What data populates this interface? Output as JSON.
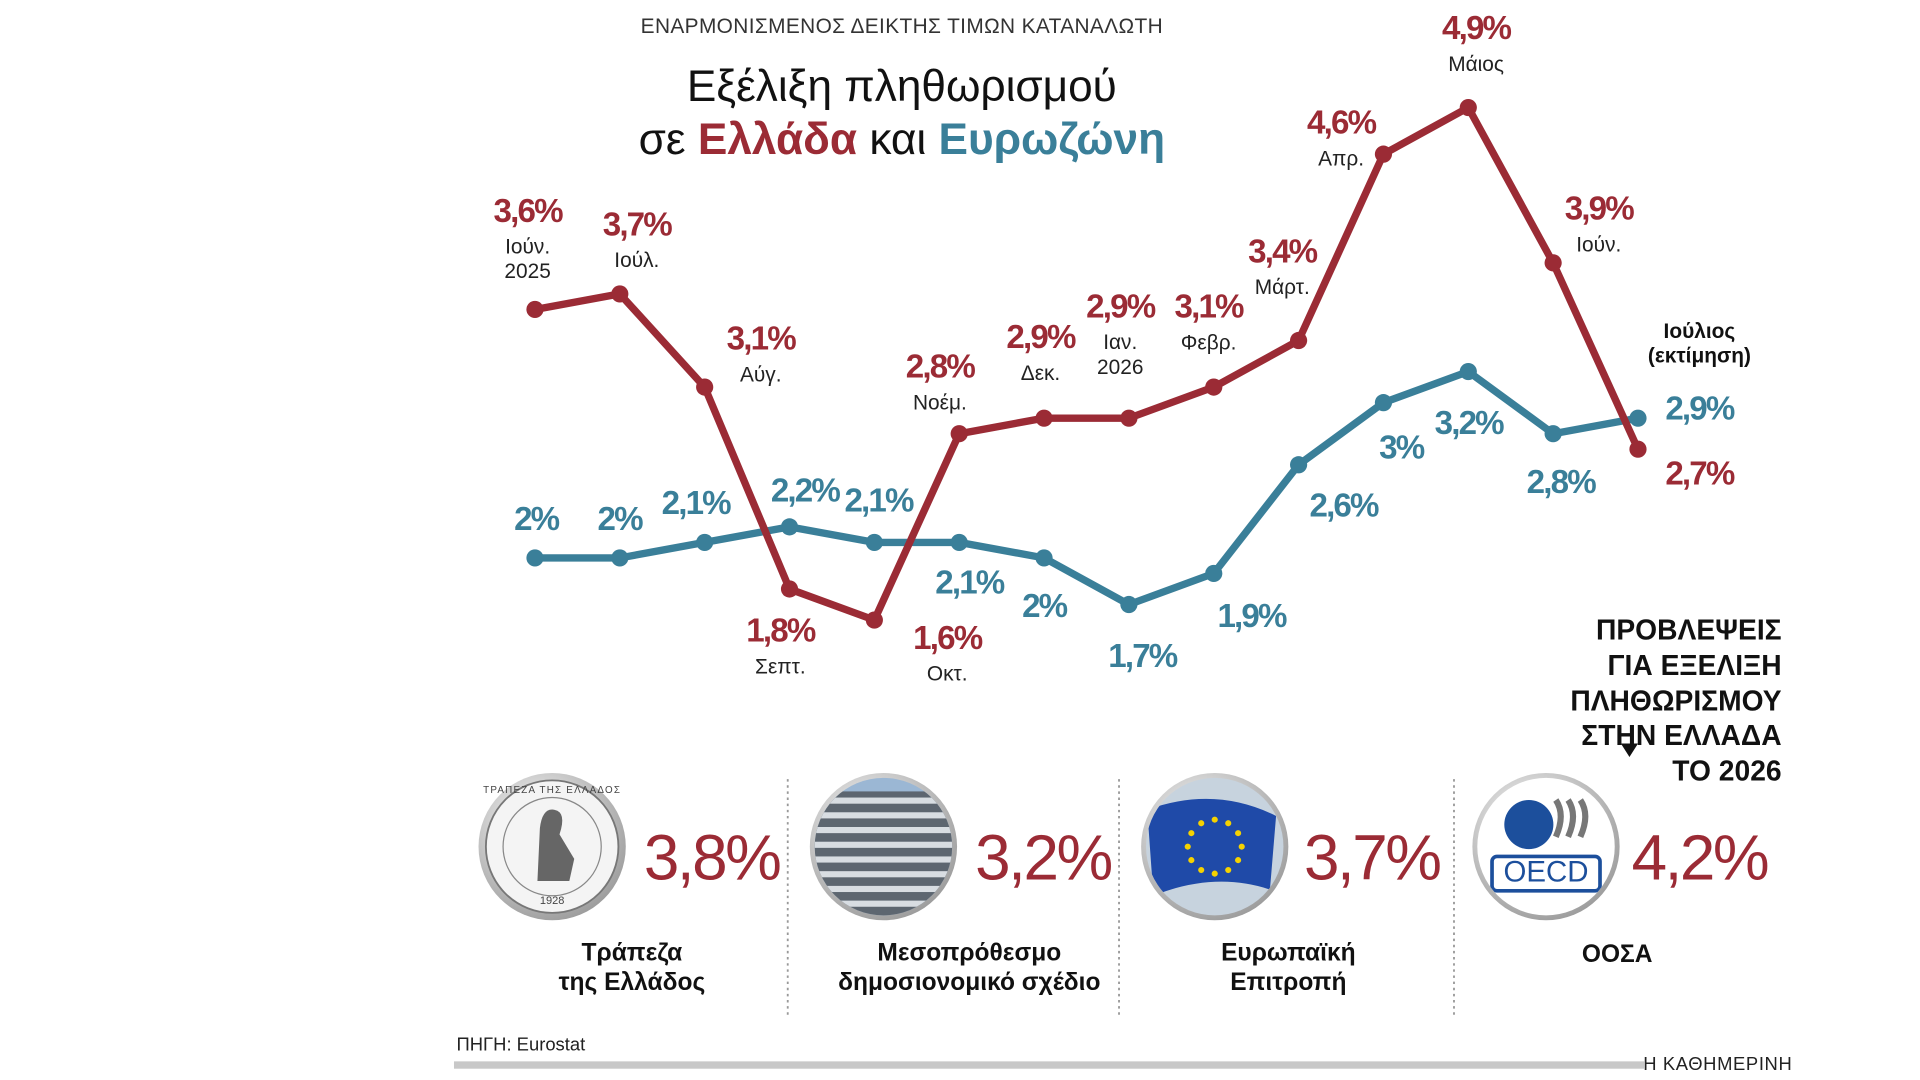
{
  "chart_data": {
    "type": "line",
    "subtitle": "ΕΝΑΡΜΟΝΙΣΜΕΝΟΣ ΔΕΙΚΤΗΣ ΤΙΜΩΝ ΚΑΤΑΝΑΛΩΤΗ",
    "title": "Εξέλιξη πληθωρισμού",
    "title_connectors": [
      "σε",
      "και"
    ],
    "categories": [
      "Ιούν.\n2025",
      "Ιούλ.",
      "Αύγ.",
      "Σεπτ.",
      "Οκτ.",
      "Νοέμ.",
      "Δεκ.",
      "Ιαν.\n2026",
      "Φεβρ.",
      "Μάρτ.",
      "Απρ.",
      "Μάιος",
      "Ιούν.",
      "Ιούλιος\n(εκτίμηση)"
    ],
    "ylim": [
      1.5,
      5.0
    ],
    "series": [
      {
        "name": "Ελλάδα",
        "color": "#9b2b35",
        "values": [
          3.6,
          3.7,
          3.1,
          1.8,
          1.6,
          2.8,
          2.9,
          2.9,
          3.1,
          3.4,
          4.6,
          4.9,
          3.9,
          2.7
        ],
        "value_labels": [
          "3,6%",
          "3,7%",
          "3,1%",
          "1,8%",
          "1,6%",
          "2,8%",
          "2,9%",
          "2,9%",
          "3,1%",
          "3,4%",
          "4,6%",
          "4,9%",
          "3,9%",
          "2,7%"
        ]
      },
      {
        "name": "Ευρωζώνη",
        "color": "#3a7f99",
        "values": [
          2.0,
          2.0,
          2.1,
          2.2,
          2.1,
          2.1,
          2.0,
          1.7,
          1.9,
          2.6,
          3.0,
          3.2,
          2.8,
          2.9
        ],
        "value_labels": [
          "2%",
          "2%",
          "2,1%",
          "2,2%",
          "2,1%",
          "2,1%",
          "2%",
          "1,7%",
          "1,9%",
          "2,6%",
          "3%",
          "3,2%",
          "2,8%",
          "2,9%"
        ]
      }
    ]
  },
  "forecasts": {
    "title": "ΠΡΟΒΛΕΨΕΙΣ ΓΙΑ ΕΞΕΛΙΞΗ\nΠΛΗΘΩΡΙΣΜΟΥ ΣΤΗΝ ΕΛΛΑΔΑ ΤΟ 2026",
    "items": [
      {
        "name": "Τράπεζα\nτης Ελλάδος",
        "value_label": "3,8%",
        "logo_text": [
          "ΤΡΑΠΕΖΑ ΤΗΣ ΕΛΛΑΔΟΣ",
          "1928"
        ]
      },
      {
        "name": "Μεσοπρόθεσμο\nδημοσιονομικό σχέδιο",
        "value_label": "3,2%"
      },
      {
        "name": "Ευρωπαϊκή\nΕπιτροπή",
        "value_label": "3,7%"
      },
      {
        "name": "ΟΟΣΑ",
        "value_label": "4,2%",
        "logo_text": [
          "OECD"
        ]
      }
    ]
  },
  "footer": {
    "source": "ΠΗΓΗ: Eurostat",
    "publisher": "Η ΚΑΘΗΜΕΡΙΝΗ"
  }
}
